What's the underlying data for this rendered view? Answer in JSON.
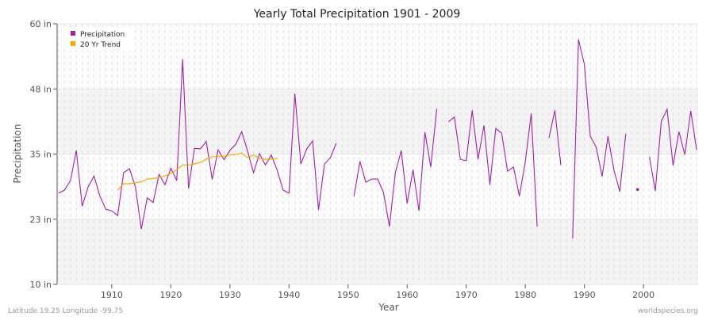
{
  "chart_data": {
    "type": "line",
    "title": "Yearly Total Precipitation 1901 - 2009",
    "xlabel": "Year",
    "ylabel": "Precipitation",
    "xlim": [
      1901,
      2009
    ],
    "ylim": [
      10,
      60
    ],
    "yticks": [
      10,
      22.5,
      35,
      47.5,
      60
    ],
    "ytick_labels": [
      "10 in",
      "23 in",
      "35 in",
      "48 in",
      "60 in"
    ],
    "xticks": [
      1910,
      1920,
      1930,
      1940,
      1950,
      1960,
      1970,
      1980,
      1990,
      2000
    ],
    "grid": true,
    "legend_position": "top-left",
    "series": [
      {
        "name": "Precipitation",
        "color": "#a020a8",
        "x": [
          1901,
          1902,
          1903,
          1904,
          1905,
          1906,
          1907,
          1908,
          1909,
          1910,
          1911,
          1912,
          1913,
          1914,
          1915,
          1916,
          1917,
          1918,
          1919,
          1920,
          1921,
          1922,
          1923,
          1924,
          1925,
          1926,
          1927,
          1928,
          1929,
          1930,
          1931,
          1932,
          1933,
          1934,
          1935,
          1936,
          1937,
          1938,
          1939,
          1940,
          1941,
          1942,
          1943,
          1944,
          1945,
          1946,
          1947,
          1948,
          1949,
          1950,
          1951,
          1952,
          1953,
          1954,
          1955,
          1956,
          1957,
          1958,
          1959,
          1960,
          1961,
          1962,
          1963,
          1964,
          1965,
          1966,
          1967,
          1968,
          1969,
          1970,
          1971,
          1972,
          1973,
          1974,
          1975,
          1976,
          1977,
          1978,
          1979,
          1980,
          1981,
          1982,
          1983,
          1984,
          1985,
          1986,
          1987,
          1988,
          1989,
          1990,
          1991,
          1992,
          1993,
          1994,
          1995,
          1996,
          1997,
          1998,
          1999,
          2000,
          2001,
          2002,
          2003,
          2004,
          2005,
          2006,
          2007,
          2008,
          2009
        ],
        "values": [
          27.5,
          28.1,
          29.9,
          35.7,
          25.0,
          28.7,
          30.8,
          26.9,
          24.4,
          24.1,
          23.2,
          31.4,
          32.2,
          28.7,
          20.6,
          26.6,
          25.7,
          31.1,
          29.1,
          32.3,
          29.9,
          53.2,
          28.4,
          36.1,
          36.0,
          37.4,
          30.1,
          35.8,
          33.9,
          35.7,
          36.9,
          39.3,
          35.5,
          31.4,
          35.1,
          32.9,
          34.8,
          31.9,
          28.1,
          27.5,
          46.6,
          33.1,
          36.0,
          37.5,
          24.3,
          33.1,
          34.3,
          37.1,
          null,
          null,
          26.9,
          33.6,
          29.6,
          30.2,
          30.2,
          27.6,
          21.1,
          31.4,
          35.7,
          25.5,
          32.0,
          24.1,
          39.2,
          32.5,
          43.7,
          null,
          41.2,
          42.1,
          34.0,
          33.7,
          43.4,
          34.0,
          40.5,
          29.1,
          39.9,
          39.0,
          31.7,
          32.5,
          26.9,
          33.6,
          42.8,
          21.1,
          null,
          38.1,
          43.4,
          32.9,
          null,
          18.8,
          57.0,
          52.2,
          38.4,
          36.3,
          30.7,
          38.4,
          31.9,
          27.8,
          38.9,
          null,
          28.2,
          null,
          34.5,
          27.9,
          41.2,
          43.6,
          32.8,
          39.3,
          34.9,
          43.3,
          35.8
        ]
      },
      {
        "name": "20 Yr Trend",
        "color": "#ffa500",
        "x": [
          1911,
          1912,
          1913,
          1914,
          1915,
          1916,
          1917,
          1918,
          1919,
          1920,
          1921,
          1922,
          1923,
          1924,
          1925,
          1926,
          1927,
          1928,
          1929,
          1930,
          1931,
          1932,
          1933,
          1934,
          1935,
          1936,
          1937,
          1938
        ],
        "values": [
          28.1,
          29.3,
          29.3,
          29.5,
          29.7,
          30.2,
          30.3,
          30.5,
          30.8,
          31.3,
          32.0,
          32.9,
          32.9,
          33.1,
          33.4,
          34.0,
          34.5,
          34.5,
          34.6,
          34.8,
          34.9,
          35.2,
          34.3,
          34.8,
          34.2,
          34.0,
          34.0,
          34.2
        ]
      }
    ]
  },
  "footer": {
    "left": "Latitude 19.25 Longitude -99.75",
    "right": "worldspecies.org"
  }
}
